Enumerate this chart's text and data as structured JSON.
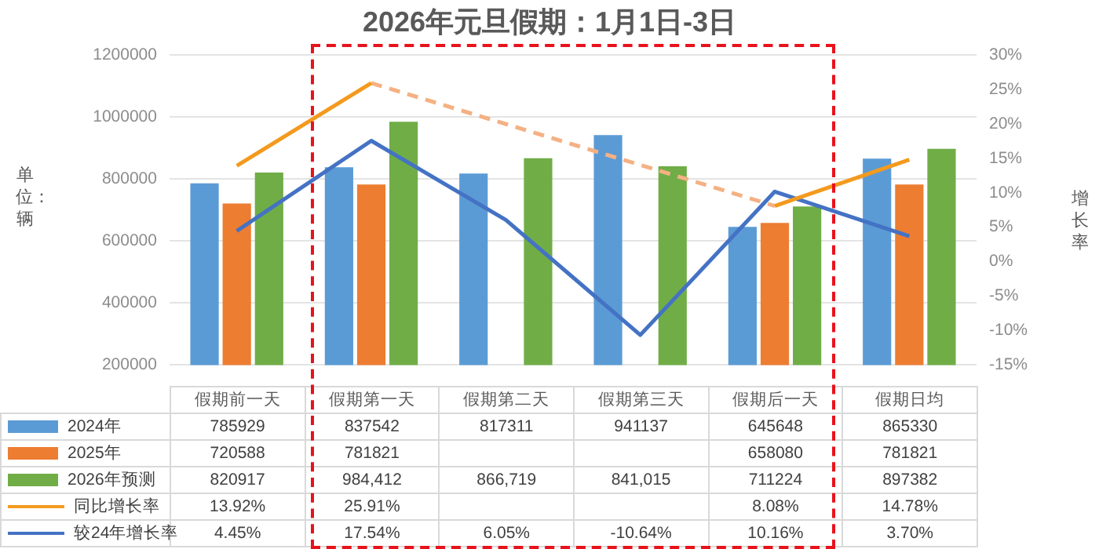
{
  "chart_data": {
    "type": "bar",
    "title": "2026年元旦假期：1月1日-3日",
    "ylabel": "单位：辆",
    "y2label": "增长率",
    "categories": [
      "假期前一天",
      "假期第一天",
      "假期第二天",
      "假期第三天",
      "假期后一天",
      "假期日均"
    ],
    "series": [
      {
        "name": "2024年",
        "color": "#5b9bd5",
        "values": [
          785929,
          837542,
          817311,
          941137,
          645648,
          865330
        ],
        "value_labels": [
          "785929",
          "837542",
          "817311",
          "941137",
          "645648",
          "865330"
        ]
      },
      {
        "name": "2025年",
        "color": "#ed7d31",
        "values": [
          720588,
          781821,
          null,
          null,
          658080,
          781821
        ],
        "value_labels": [
          "720588",
          "781821",
          null,
          null,
          "658080",
          "781821"
        ]
      },
      {
        "name": "2026年预测",
        "color": "#70ad47",
        "values": [
          820917,
          984412,
          866719,
          841015,
          711224,
          897382
        ],
        "value_labels": [
          "820917",
          "984,412",
          "866,719",
          "841,015",
          "711224",
          "897382"
        ]
      },
      {
        "name": "同比增长率",
        "type": "line",
        "axis": "y2",
        "color": "#f39a1e",
        "values": [
          13.92,
          25.91,
          null,
          null,
          8.08,
          14.78
        ],
        "value_labels": [
          "13.92%",
          "25.91%",
          null,
          null,
          "8.08%",
          "14.78%"
        ]
      },
      {
        "name": "较24年增长率",
        "type": "line",
        "axis": "y2",
        "color": "#4472c4",
        "values": [
          4.45,
          17.54,
          6.05,
          -10.64,
          10.16,
          3.7
        ],
        "value_labels": [
          "4.45%",
          "17.54%",
          "6.05%",
          "-10.64%",
          "10.16%",
          "3.70%"
        ]
      },
      {
        "type": "line",
        "axis": "y2",
        "color": "#f4b183",
        "line_style": "dashed",
        "values": [
          null,
          25.91,
          null,
          null,
          8.08,
          null
        ]
      }
    ],
    "ylim": [
      200000,
      1200000
    ],
    "yticks": [
      200000,
      400000,
      600000,
      800000,
      1000000,
      1200000
    ],
    "y2lim": [
      -15,
      30
    ],
    "y2ticks": [
      {
        "value": -15,
        "label": "-15%"
      },
      {
        "value": -10,
        "label": "-10%"
      },
      {
        "value": -5,
        "label": "-5%"
      },
      {
        "value": 0,
        "label": "0%"
      },
      {
        "value": 5,
        "label": "5%"
      },
      {
        "value": 10,
        "label": "10%"
      },
      {
        "value": 15,
        "label": "15%"
      },
      {
        "value": 20,
        "label": "20%"
      },
      {
        "value": 25,
        "label": "25%"
      },
      {
        "value": 30,
        "label": "30%"
      }
    ],
    "grid": "y",
    "legend": "bottom",
    "marker": "none"
  }
}
